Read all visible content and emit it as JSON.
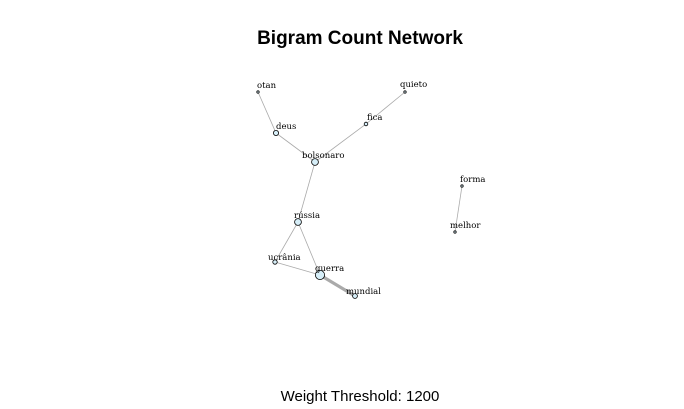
{
  "title": "Bigram Count Network",
  "footer": {
    "label": "Weight Threshold:",
    "value": "1200"
  },
  "style": {
    "node_fill": "#d6eef8",
    "node_stroke": "#000000",
    "edge_color": "#aaaaaa"
  },
  "nodes": [
    {
      "id": "otan",
      "label": "otan"
    },
    {
      "id": "quieto",
      "label": "quieto"
    },
    {
      "id": "deus",
      "label": "deus"
    },
    {
      "id": "fica",
      "label": "fica"
    },
    {
      "id": "bolsonaro",
      "label": "bolsonaro"
    },
    {
      "id": "forma",
      "label": "forma"
    },
    {
      "id": "russia",
      "label": "rússia"
    },
    {
      "id": "melhor",
      "label": "melhor"
    },
    {
      "id": "ucrania",
      "label": "ucrânia"
    },
    {
      "id": "guerra",
      "label": "guerra"
    },
    {
      "id": "mundial",
      "label": "mundial"
    }
  ],
  "edges": [
    {
      "from": "otan",
      "to": "deus",
      "weight": 1
    },
    {
      "from": "deus",
      "to": "bolsonaro",
      "weight": 1
    },
    {
      "from": "quieto",
      "to": "fica",
      "weight": 1
    },
    {
      "from": "fica",
      "to": "bolsonaro",
      "weight": 1
    },
    {
      "from": "bolsonaro",
      "to": "russia",
      "weight": 1
    },
    {
      "from": "russia",
      "to": "ucrania",
      "weight": 1
    },
    {
      "from": "russia",
      "to": "guerra",
      "weight": 1
    },
    {
      "from": "ucrania",
      "to": "guerra",
      "weight": 1
    },
    {
      "from": "guerra",
      "to": "mundial",
      "weight": 4
    },
    {
      "from": "forma",
      "to": "melhor",
      "weight": 1
    }
  ]
}
